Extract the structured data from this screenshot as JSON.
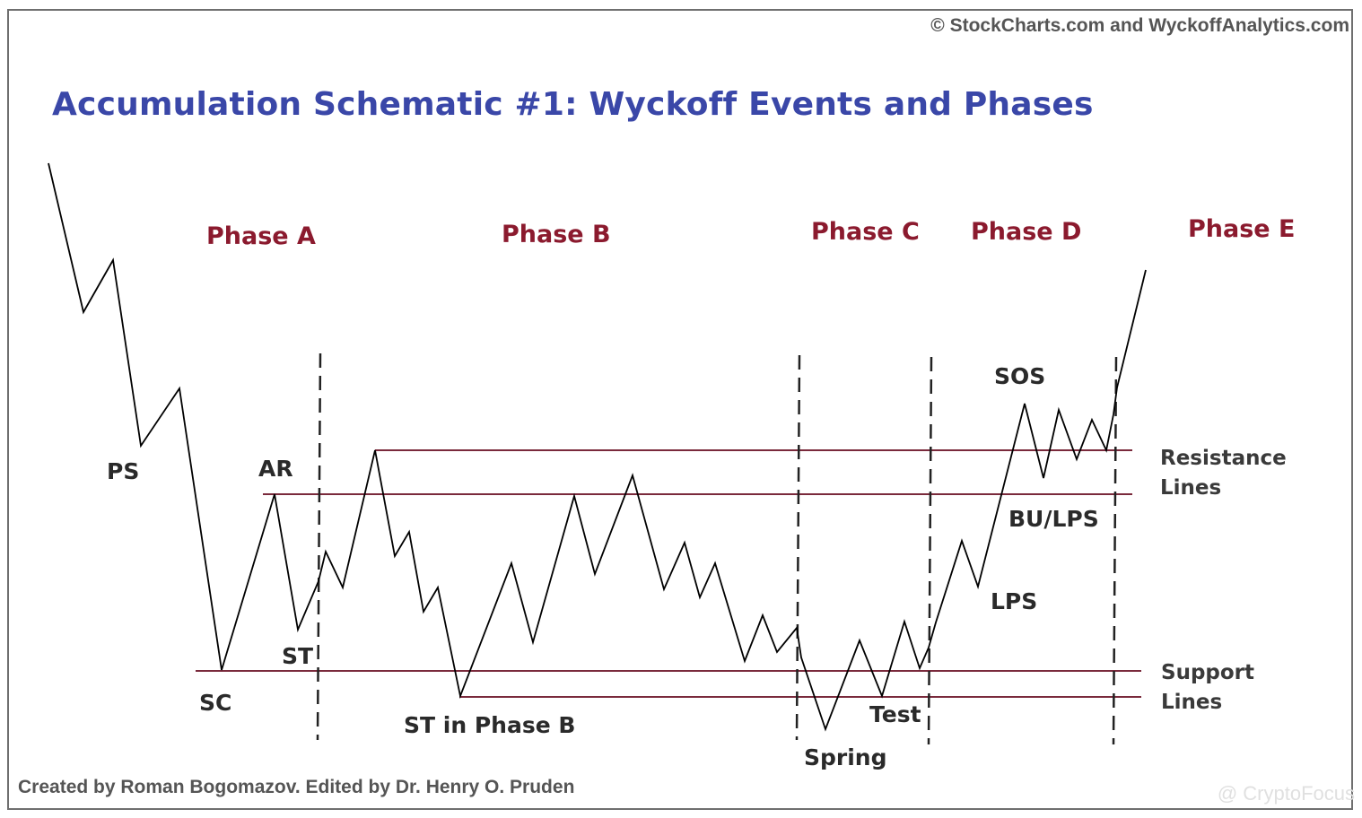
{
  "copyright": "© StockCharts.com and WyckoffAnalytics.com",
  "title": "Accumulation Schematic #1: Wyckoff Events and Phases",
  "phases": [
    "Phase A",
    "Phase B",
    "Phase C",
    "Phase D",
    "Phase E"
  ],
  "events": {
    "ps": "PS",
    "sc": "SC",
    "ar": "AR",
    "st": "ST",
    "st_phase_b": "ST in Phase B",
    "spring": "Spring",
    "test": "Test",
    "lps": "LPS",
    "bu_lps": "BU/LPS",
    "sos": "SOS"
  },
  "side_labels": {
    "resistance_1": "Resistance",
    "resistance_2": "Lines",
    "support_1": "Support",
    "support_2": "Lines"
  },
  "credit": "Created by Roman Bogomazov. Edited by Dr. Henry O. Pruden",
  "watermark": "@ CryptoFocus",
  "colors": {
    "title": "#3a47a8",
    "phase": "#8b1a2e",
    "level_lines": "#7a2a3c",
    "price_line": "#000000"
  }
}
